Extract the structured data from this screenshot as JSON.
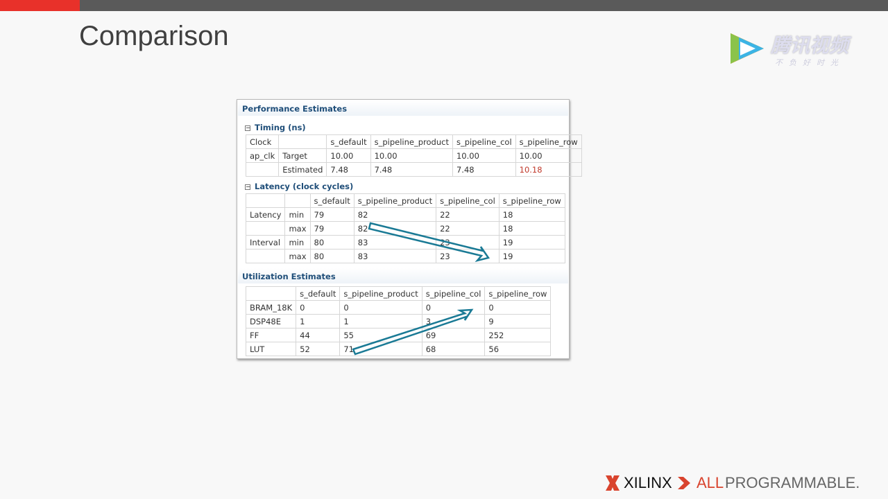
{
  "slide": {
    "title": "Comparison"
  },
  "watermark": {
    "name": "腾讯视频",
    "slogan": "不负好时光"
  },
  "panel": {
    "header": "Performance Estimates",
    "timing": {
      "title": "Timing (ns)",
      "headers": [
        "Clock",
        "",
        "s_default",
        "s_pipeline_product",
        "s_pipeline_col",
        "s_pipeline_row"
      ],
      "rows": [
        [
          "ap_clk",
          "Target",
          "10.00",
          "10.00",
          "10.00",
          "10.00"
        ],
        [
          "",
          "Estimated",
          "7.48",
          "7.48",
          "7.48",
          "10.18"
        ]
      ],
      "highlight_color": "#c0392b"
    },
    "latency": {
      "title": "Latency (clock cycles)",
      "headers": [
        "",
        "",
        "s_default",
        "s_pipeline_product",
        "s_pipeline_col",
        "s_pipeline_row"
      ],
      "rows": [
        [
          "Latency",
          "min",
          "79",
          "82",
          "22",
          "18"
        ],
        [
          "",
          "max",
          "79",
          "82",
          "22",
          "18"
        ],
        [
          "Interval",
          "min",
          "80",
          "83",
          "23",
          "19"
        ],
        [
          "",
          "max",
          "80",
          "83",
          "23",
          "19"
        ]
      ]
    },
    "utilization": {
      "title": "Utilization Estimates",
      "headers": [
        "",
        "s_default",
        "s_pipeline_product",
        "s_pipeline_col",
        "s_pipeline_row"
      ],
      "rows": [
        [
          "BRAM_18K",
          "0",
          "0",
          "0",
          "0"
        ],
        [
          "DSP48E",
          "1",
          "1",
          "3",
          "9"
        ],
        [
          "FF",
          "44",
          "55",
          "69",
          "252"
        ],
        [
          "LUT",
          "52",
          "71",
          "68",
          "56"
        ]
      ]
    },
    "arrow_color": "#1a7a95"
  },
  "footer": {
    "brand": "XILINX",
    "tag_all": "ALL",
    "tag_prog": "PROGRAMMABLE."
  }
}
